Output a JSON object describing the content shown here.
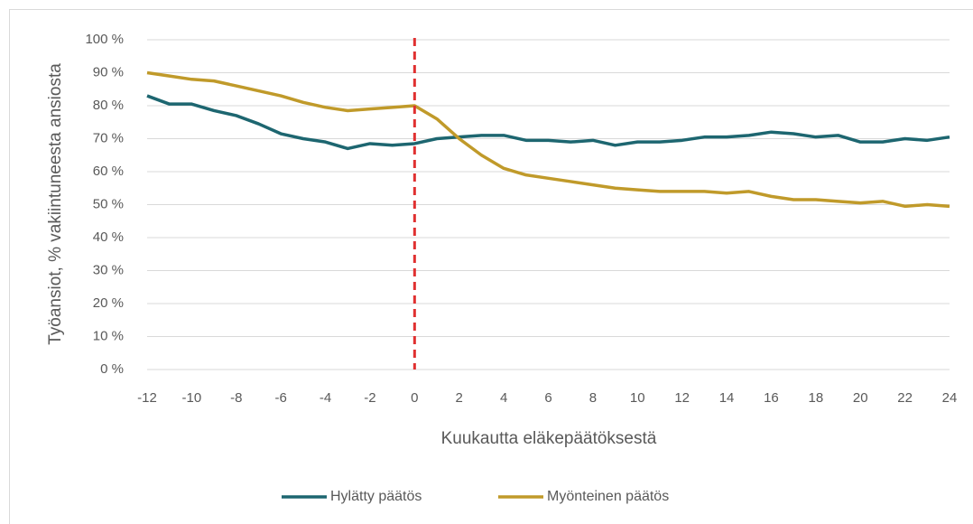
{
  "chart_data": {
    "type": "line",
    "xlabel": "Kuukautta eläkepäätöksestä",
    "ylabel": "Työansiot, % vakiintuneesta ansiosta",
    "x": [
      -12,
      -11,
      -10,
      -9,
      -8,
      -7,
      -6,
      -5,
      -4,
      -3,
      -2,
      -1,
      0,
      1,
      2,
      3,
      4,
      5,
      6,
      7,
      8,
      9,
      10,
      11,
      12,
      13,
      14,
      15,
      16,
      17,
      18,
      19,
      20,
      21,
      22,
      23,
      24
    ],
    "series": [
      {
        "name": "Hylätty päätös",
        "color": "#1d6670",
        "values": [
          83,
          80.5,
          80.5,
          78.5,
          77,
          74.5,
          71.5,
          70,
          69,
          67,
          68.5,
          68,
          68.5,
          70,
          70.5,
          71,
          71,
          69.5,
          69.5,
          69,
          69.5,
          68,
          69,
          69,
          69.5,
          70.5,
          70.5,
          71,
          72,
          71.5,
          70.5,
          71,
          69,
          69,
          70,
          69.5,
          70.5
        ]
      },
      {
        "name": "Myönteinen päätös",
        "color": "#c09a2a",
        "values": [
          90,
          89,
          88,
          87.5,
          86,
          84.5,
          83,
          81,
          79.5,
          78.5,
          79,
          79.5,
          80,
          76,
          70,
          65,
          61,
          59,
          58,
          57,
          56,
          55,
          54.5,
          54,
          54,
          54,
          53.5,
          54,
          52.5,
          51.5,
          51.5,
          51,
          50.5,
          51,
          49.5,
          50,
          49.5
        ]
      }
    ],
    "xlim": [
      -12,
      24
    ],
    "xticks": [
      -12,
      -10,
      -8,
      -6,
      -4,
      -2,
      0,
      2,
      4,
      6,
      8,
      10,
      12,
      14,
      16,
      18,
      20,
      22,
      24
    ],
    "ylim": [
      0,
      100
    ],
    "yticks": [
      {
        "value": 0,
        "label": "0 %"
      },
      {
        "value": 10,
        "label": "10 %"
      },
      {
        "value": 20,
        "label": "20 %"
      },
      {
        "value": 30,
        "label": "30 %"
      },
      {
        "value": 40,
        "label": "40 %"
      },
      {
        "value": 50,
        "label": "50 %"
      },
      {
        "value": 60,
        "label": "60 %"
      },
      {
        "value": 70,
        "label": "70 %"
      },
      {
        "value": 80,
        "label": "80 %"
      },
      {
        "value": 90,
        "label": "90 %"
      },
      {
        "value": 100,
        "label": "100 %"
      }
    ],
    "grid": true,
    "reference_line": {
      "x": 0,
      "color": "#e03030"
    },
    "legend": "bottom"
  }
}
